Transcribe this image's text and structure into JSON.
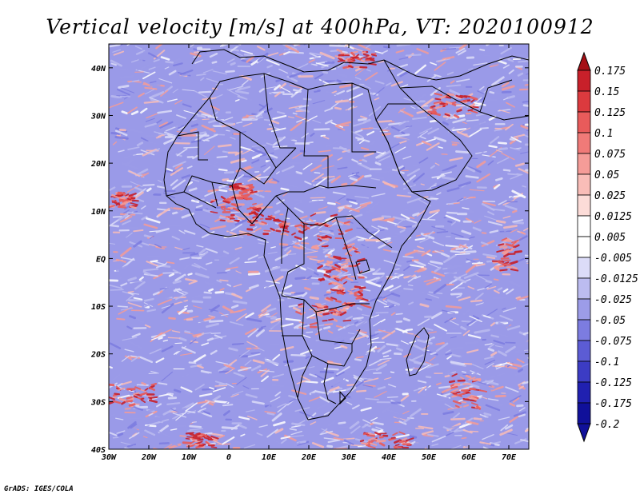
{
  "map": {
    "title": "Vertical velocity [m/s] at 400hPa, VT: 2020100912",
    "credit": "GrADS: IGES/COLA",
    "lat_ticks": [
      "40N",
      "30N",
      "20N",
      "10N",
      "EQ",
      "10S",
      "20S",
      "30S",
      "40S"
    ],
    "lat_values": [
      40,
      30,
      20,
      10,
      0,
      -10,
      -20,
      -30,
      -40
    ],
    "lon_ticks": [
      "30W",
      "20W",
      "10W",
      "0",
      "10E",
      "20E",
      "30E",
      "40E",
      "50E",
      "60E",
      "70E"
    ],
    "lon_values": [
      -30,
      -20,
      -10,
      0,
      10,
      20,
      30,
      40,
      50,
      60,
      70
    ],
    "lat_range": [
      -40,
      45
    ],
    "lon_range": [
      -30,
      75
    ]
  },
  "colorbar": {
    "labels": [
      "0.175",
      "0.15",
      "0.125",
      "0.1",
      "0.075",
      "0.05",
      "0.025",
      "0.0125",
      "0.005",
      "-0.005",
      "-0.0125",
      "-0.025",
      "-0.05",
      "-0.075",
      "-0.1",
      "-0.125",
      "-0.175",
      "-0.2"
    ],
    "colors": [
      "#a50f15",
      "#c8202a",
      "#dc3a3e",
      "#e85b5b",
      "#f07a78",
      "#f59c98",
      "#f9bdb8",
      "#fcdcd8",
      "#ffffff",
      "#ffffff",
      "#dcdcf8",
      "#bcbcf0",
      "#9c9ce8",
      "#7c7ce0",
      "#5c5cd4",
      "#3c3cc4",
      "#2020b0",
      "#10109a"
    ]
  },
  "colors": {
    "sea_base": "#9a9ae8",
    "land_base": "#c8a8d8",
    "border": "#000000"
  }
}
